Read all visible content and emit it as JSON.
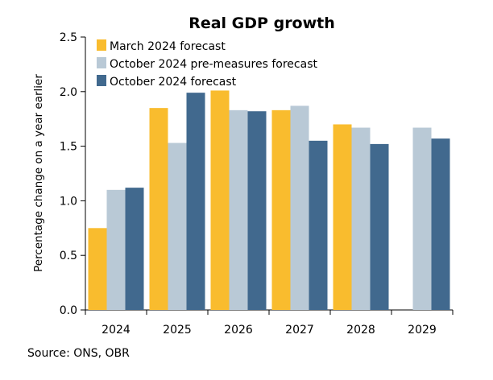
{
  "chart_data": {
    "type": "bar",
    "title": "Real GDP growth",
    "ylabel": "Percentage change on a year earlier",
    "xlabel": "",
    "ylim": [
      0,
      2.5
    ],
    "yticks": [
      "0.0",
      "0.5",
      "1.0",
      "1.5",
      "2.0",
      "2.5"
    ],
    "categories": [
      "2024",
      "2025",
      "2026",
      "2027",
      "2028",
      "2029"
    ],
    "series": [
      {
        "name": "March 2024 forecast",
        "color": "#F9BC2E",
        "values": [
          0.75,
          1.85,
          2.01,
          1.83,
          1.7,
          null
        ]
      },
      {
        "name": "October 2024 pre-measures forecast",
        "color": "#B9C9D6",
        "values": [
          1.1,
          1.53,
          1.83,
          1.87,
          1.67,
          1.67
        ]
      },
      {
        "name": "October 2024 forecast",
        "color": "#41698E",
        "values": [
          1.12,
          1.99,
          1.82,
          1.55,
          1.52,
          1.57
        ]
      }
    ],
    "legend_position": "top-left",
    "grid": false
  },
  "source": "Source: ONS, OBR"
}
